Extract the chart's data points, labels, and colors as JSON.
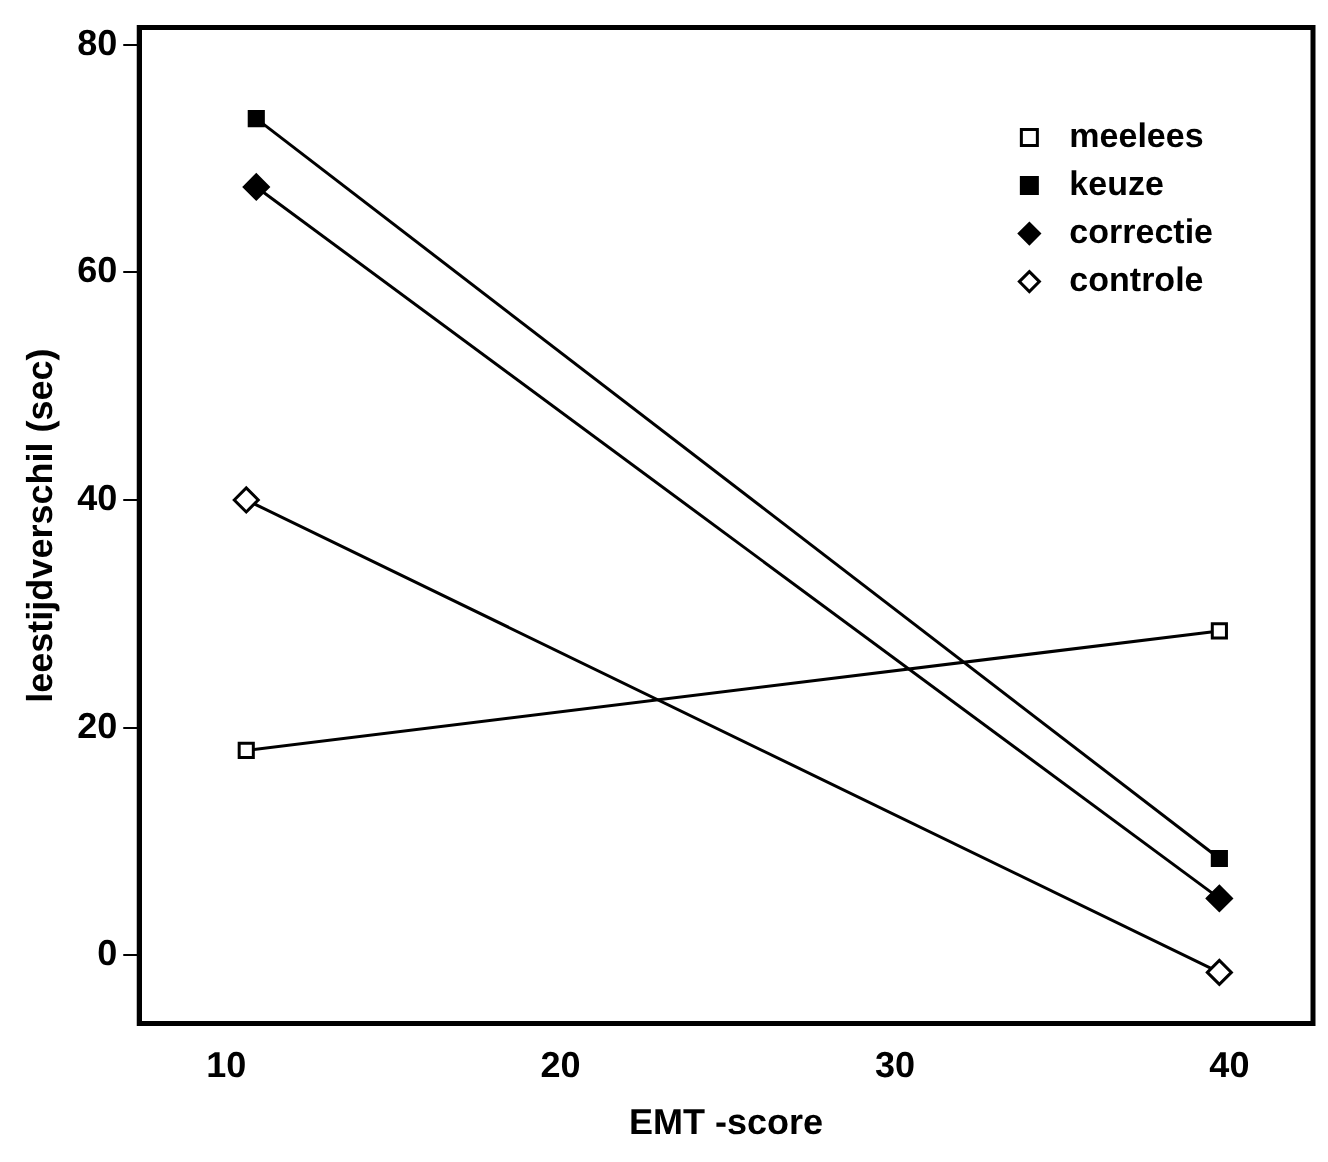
{
  "chart_data": {
    "type": "line",
    "xlabel": "EMT -score",
    "ylabel": "leestijdverschil (sec)",
    "xlim": [
      7.4,
      42.5
    ],
    "xticks": [
      10,
      20,
      30,
      40
    ],
    "ylim": [
      -6,
      81.5
    ],
    "yticks": [
      0,
      20,
      40,
      60,
      80
    ],
    "grid": false,
    "legend": "top right",
    "line_style": "solid",
    "series": [
      {
        "name": "meelees",
        "color": "#000000",
        "marker": "square",
        "x": [
          10.6,
          39.7
        ],
        "values": [
          18,
          28.5
        ]
      },
      {
        "name": "keuze",
        "color": "#000000",
        "marker": "square",
        "x": [
          10.9,
          39.7
        ],
        "values": [
          73.5,
          8.5
        ]
      },
      {
        "name": "correctie",
        "color": "#000000",
        "marker": "diamond",
        "x": [
          10.9,
          39.7
        ],
        "values": [
          67.5,
          5
        ]
      },
      {
        "name": "controle",
        "color": "#000000",
        "marker": "diamond",
        "x": [
          10.6,
          39.7
        ],
        "values": [
          40,
          -1.5
        ]
      }
    ]
  }
}
